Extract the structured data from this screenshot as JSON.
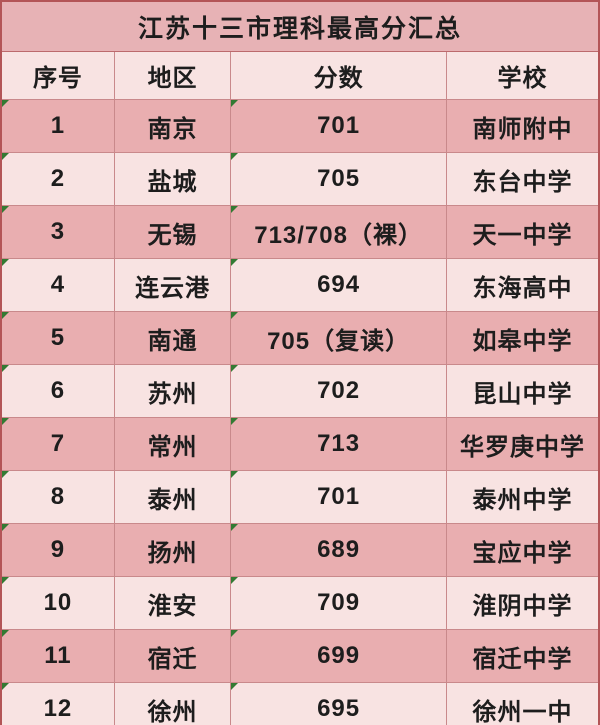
{
  "title": "江苏十三市理科最高分汇总",
  "columns": {
    "no": "序号",
    "region": "地区",
    "score": "分数",
    "school": "学校"
  },
  "rows": [
    {
      "no": "1",
      "region": "南京",
      "score": "701",
      "school": "南师附中"
    },
    {
      "no": "2",
      "region": "盐城",
      "score": "705",
      "school": "东台中学"
    },
    {
      "no": "3",
      "region": "无锡",
      "score": "713/708（裸）",
      "school": "天一中学"
    },
    {
      "no": "4",
      "region": "连云港",
      "score": "694",
      "school": "东海高中"
    },
    {
      "no": "5",
      "region": "南通",
      "score": "705（复读）",
      "school": "如皋中学"
    },
    {
      "no": "6",
      "region": "苏州",
      "score": "702",
      "school": "昆山中学"
    },
    {
      "no": "7",
      "region": "常州",
      "score": "713",
      "school": "华罗庚中学"
    },
    {
      "no": "8",
      "region": "泰州",
      "score": "701",
      "school": "泰州中学"
    },
    {
      "no": "9",
      "region": "扬州",
      "score": "689",
      "school": "宝应中学"
    },
    {
      "no": "10",
      "region": "淮安",
      "score": "709",
      "school": "淮阴中学"
    },
    {
      "no": "11",
      "region": "宿迁",
      "score": "699",
      "school": "宿迁中学"
    },
    {
      "no": "12",
      "region": "徐州",
      "score": "695",
      "school": "徐州一中"
    }
  ],
  "colors": {
    "outer_border": "#b35557",
    "grid_line": "#c9898b",
    "title_bg": "#e7b2b5",
    "header_bg": "#f8e3e2",
    "row_odd_bg": "#e9aeb0",
    "row_even_bg": "#f8e3e2",
    "text": "#1d1d1d",
    "error_indicator_green": "#337a33"
  },
  "chart_data": {
    "type": "table",
    "title": "江苏十三市理科最高分汇总",
    "columns": [
      "序号",
      "地区",
      "分数",
      "学校"
    ],
    "rows": [
      [
        "1",
        "南京",
        "701",
        "南师附中"
      ],
      [
        "2",
        "盐城",
        "705",
        "东台中学"
      ],
      [
        "3",
        "无锡",
        "713/708（裸）",
        "天一中学"
      ],
      [
        "4",
        "连云港",
        "694",
        "东海高中"
      ],
      [
        "5",
        "南通",
        "705（复读）",
        "如皋中学"
      ],
      [
        "6",
        "苏州",
        "702",
        "昆山中学"
      ],
      [
        "7",
        "常州",
        "713",
        "华罗庚中学"
      ],
      [
        "8",
        "泰州",
        "701",
        "泰州中学"
      ],
      [
        "9",
        "扬州",
        "689",
        "宝应中学"
      ],
      [
        "10",
        "淮安",
        "709",
        "淮阴中学"
      ],
      [
        "11",
        "宿迁",
        "699",
        "宿迁中学"
      ],
      [
        "12",
        "徐州",
        "695",
        "徐州一中"
      ]
    ]
  }
}
